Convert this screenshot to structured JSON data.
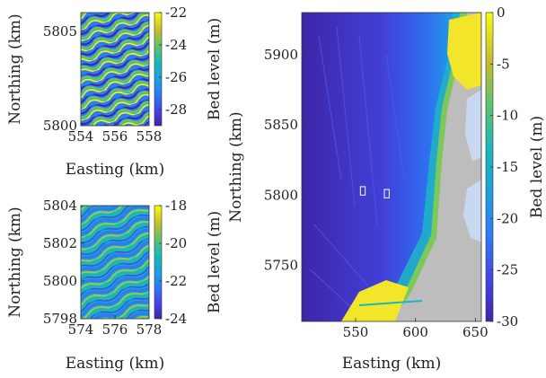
{
  "chart_data": [
    {
      "type": "heatmap",
      "xlabel": "Easting (km)",
      "ylabel": "Northing (km)",
      "xlim": [
        554,
        558
      ],
      "ylim": [
        5800,
        5806
      ],
      "xticks": [
        "554",
        "556",
        "558"
      ],
      "yticks": [
        "5800",
        "5805"
      ],
      "colorbar": {
        "label": "Bed level (m)",
        "range": [
          -29,
          -22
        ],
        "ticks": [
          "-22",
          "-24",
          "-26",
          "-28"
        ]
      }
    },
    {
      "type": "heatmap",
      "xlabel": "Easting (km)",
      "ylabel": "Northing (km)",
      "xlim": [
        574,
        578
      ],
      "ylim": [
        5798,
        5804
      ],
      "xticks": [
        "574",
        "576",
        "578"
      ],
      "yticks": [
        "5798",
        "5800",
        "5802",
        "5804"
      ],
      "colorbar": {
        "label": "Bed level (m)",
        "range": [
          -24,
          -18
        ],
        "ticks": [
          "-18",
          "-20",
          "-22",
          "-24"
        ]
      }
    },
    {
      "type": "heatmap",
      "xlabel": "Easting (km)",
      "ylabel": "Northing (km)",
      "xlim": [
        505,
        655
      ],
      "ylim": [
        5710,
        5930
      ],
      "xticks": [
        "550",
        "600",
        "650"
      ],
      "yticks": [
        "5750",
        "5800",
        "5850",
        "5900"
      ],
      "colorbar": {
        "label": "Bed level (m)",
        "range": [
          -30,
          0
        ],
        "ticks": [
          "0",
          "-5",
          "-10",
          "-15",
          "-20",
          "-25",
          "-30"
        ]
      },
      "highlight_boxes": [
        {
          "x": [
            554,
            558
          ],
          "y": [
            5800,
            5806
          ]
        },
        {
          "x": [
            574,
            578
          ],
          "y": [
            5798,
            5804
          ]
        }
      ]
    }
  ],
  "colors": {
    "land": "#bdbdbd",
    "lake": "#c8d8f0",
    "deep": "#3e26a8",
    "shallow": "#f9fb0e",
    "mid": "#2eb7b3"
  }
}
